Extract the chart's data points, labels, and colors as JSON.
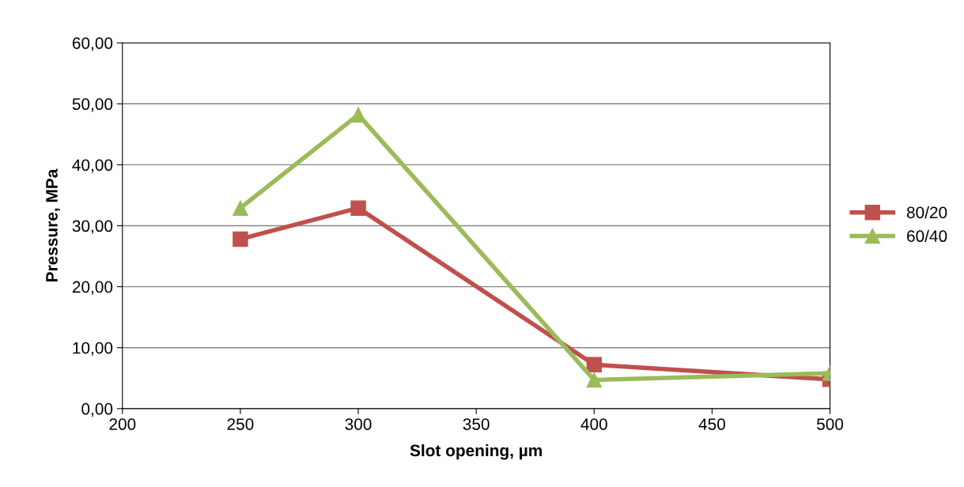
{
  "chart_data": {
    "type": "line",
    "xlabel": "Slot opening, µm",
    "ylabel": "Pressure, MPa",
    "xlim": [
      200,
      500
    ],
    "xticks": [
      200,
      250,
      300,
      350,
      400,
      450,
      500
    ],
    "ylim": [
      0,
      60
    ],
    "yticks": [
      {
        "value": 0,
        "label": "0,00"
      },
      {
        "value": 10,
        "label": "10,00"
      },
      {
        "value": 20,
        "label": "20,00"
      },
      {
        "value": 30,
        "label": "30,00"
      },
      {
        "value": 40,
        "label": "40,00"
      },
      {
        "value": 50,
        "label": "50,00"
      },
      {
        "value": 60,
        "label": "60,00"
      }
    ],
    "grid": "y",
    "legend": "right",
    "line_style": "solid",
    "series": [
      {
        "name": "80/20",
        "color": "#c0504d",
        "marker": "square",
        "x": [
          250,
          300,
          400,
          500
        ],
        "values": [
          27.8,
          32.9,
          7.2,
          4.8
        ]
      },
      {
        "name": "60/40",
        "color": "#9bbb59",
        "marker": "triangle",
        "x": [
          250,
          300,
          400,
          500
        ],
        "values": [
          32.9,
          48.2,
          4.7,
          5.8
        ]
      }
    ]
  }
}
